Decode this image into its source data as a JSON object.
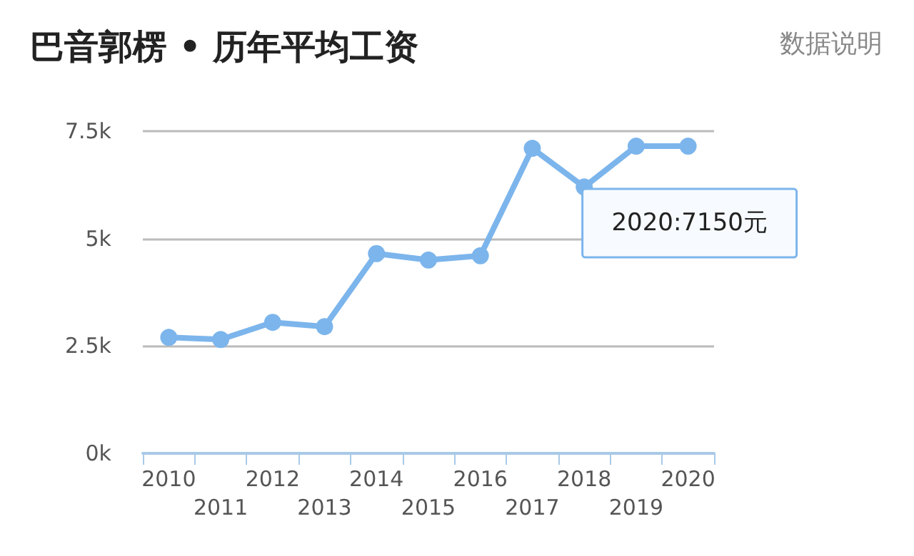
{
  "chart_data": {
    "type": "line",
    "title": "巴音郭楞 • 历年平均工资",
    "categories": [
      "2010",
      "2011",
      "2012",
      "2013",
      "2014",
      "2015",
      "2016",
      "2017",
      "2018",
      "2019",
      "2020"
    ],
    "series": [
      {
        "color": "#7cb5ec",
        "values": [
          2700,
          2650,
          3050,
          2950,
          4650,
          4500,
          4600,
          7100,
          6200,
          7150,
          7150
        ]
      }
    ],
    "ylim": [
      0,
      7500
    ],
    "yticks": [
      {
        "value": 0,
        "label": "0k"
      },
      {
        "value": 2500,
        "label": "2.5k"
      },
      {
        "value": 5000,
        "label": "5k"
      },
      {
        "value": 7500,
        "label": "7.5k"
      }
    ],
    "grid": "y",
    "marker": "circle",
    "line_style": "solid",
    "annotations": [
      "数据说明",
      {
        "text": "2020:7150元",
        "x": "2020",
        "y": 7150
      }
    ]
  }
}
